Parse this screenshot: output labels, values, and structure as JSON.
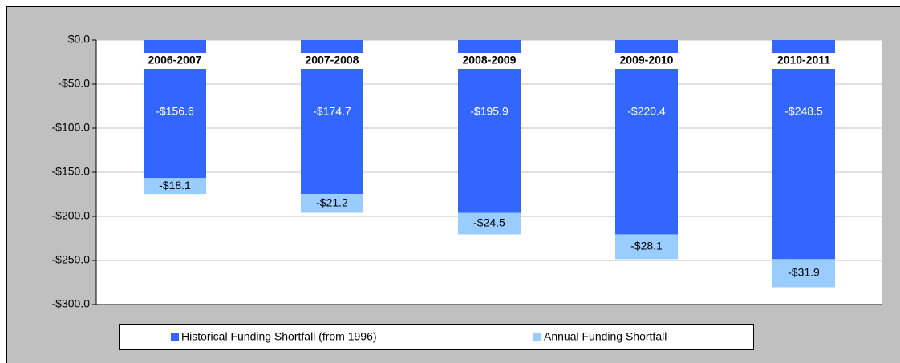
{
  "chart_data": {
    "type": "bar",
    "stacked": true,
    "categories": [
      "2006-2007",
      "2007-2008",
      "2008-2009",
      "2009-2010",
      "2010-2011"
    ],
    "series": [
      {
        "name": "Historical Funding Shortfall (from 1996)",
        "color": "#3366ff",
        "values": [
          -156.6,
          -174.7,
          -195.9,
          -220.4,
          -248.5
        ],
        "value_labels": [
          "-$156.6",
          "-$174.7",
          "-$195.9",
          "-$220.4",
          "-$248.5"
        ]
      },
      {
        "name": "Annual Funding Shortfall",
        "color": "#99ccff",
        "values": [
          -18.1,
          -21.2,
          -24.5,
          -28.1,
          -31.9
        ],
        "value_labels": [
          "-$18.1",
          "-$21.2",
          "-$24.5",
          "-$28.1",
          "-$31.9"
        ]
      }
    ],
    "ylim": [
      -300,
      0
    ],
    "yticks": [
      {
        "value": 0,
        "label": "$0.0"
      },
      {
        "value": -50,
        "label": "-$50.0"
      },
      {
        "value": -100,
        "label": "-$100.0"
      },
      {
        "value": -150,
        "label": "-$150.0"
      },
      {
        "value": -200,
        "label": "-$200.0"
      },
      {
        "value": -250,
        "label": "-$250.0"
      },
      {
        "value": -300,
        "label": "-$300.0"
      }
    ],
    "grid": true,
    "legend": "bottom"
  }
}
